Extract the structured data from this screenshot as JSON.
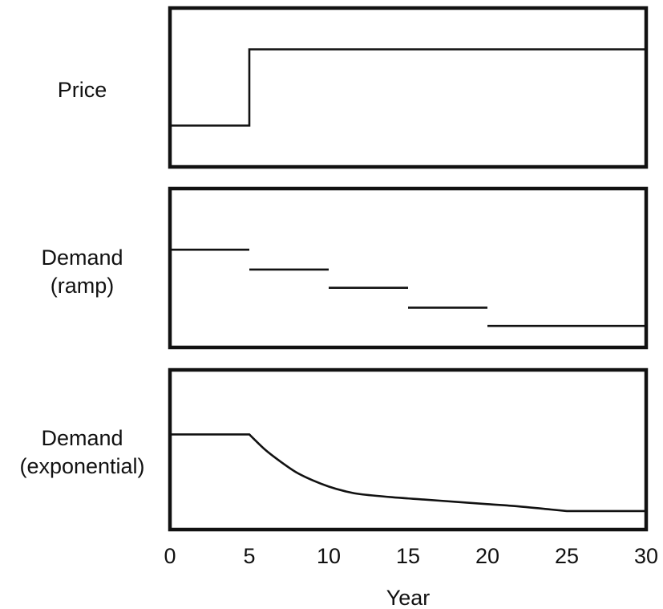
{
  "chart_data": [
    {
      "type": "line",
      "panel_label": [
        "Price"
      ],
      "x": [
        0,
        5,
        5,
        30
      ],
      "y": [
        0.25,
        0.25,
        0.75,
        0.75
      ],
      "xlim": [
        0,
        30
      ],
      "ylim": [
        0,
        1
      ],
      "grid": false,
      "y_ticks_shown": false
    },
    {
      "type": "line",
      "panel_label": [
        "Demand",
        "(ramp)"
      ],
      "segments": [
        {
          "x": [
            0,
            5
          ],
          "y": 0.62
        },
        {
          "x": [
            5,
            10
          ],
          "y": 0.49
        },
        {
          "x": [
            10,
            15
          ],
          "y": 0.37
        },
        {
          "x": [
            15,
            20
          ],
          "y": 0.24
        },
        {
          "x": [
            20,
            30
          ],
          "y": 0.12
        }
      ],
      "xlim": [
        0,
        30
      ],
      "ylim": [
        0,
        1
      ],
      "grid": false,
      "y_ticks_shown": false
    },
    {
      "type": "line",
      "panel_label": [
        "Demand",
        "(exponential)"
      ],
      "x": [
        0,
        5,
        6,
        7,
        8,
        9,
        10,
        11,
        12,
        14,
        16,
        18,
        20,
        22,
        24,
        25,
        30
      ],
      "y": [
        0.6,
        0.6,
        0.5,
        0.42,
        0.35,
        0.3,
        0.26,
        0.23,
        0.21,
        0.19,
        0.175,
        0.16,
        0.145,
        0.13,
        0.11,
        0.1,
        0.1
      ],
      "xlim": [
        0,
        30
      ],
      "ylim": [
        0,
        1
      ],
      "grid": false,
      "y_ticks_shown": false,
      "xlabel": "Year",
      "xticks": [
        0,
        5,
        10,
        15,
        20,
        25,
        30
      ]
    }
  ],
  "colors": {
    "ink": "#111111",
    "background": "#ffffff"
  }
}
